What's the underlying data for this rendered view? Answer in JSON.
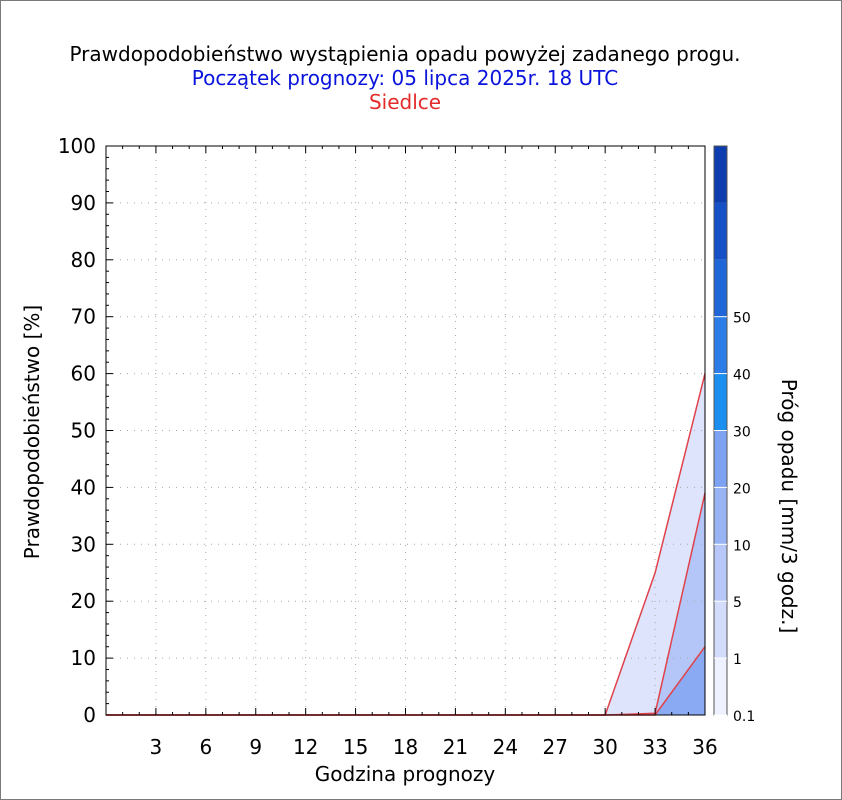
{
  "header": {
    "title": "Prawdopodobieństwo wystąpienia opadu powyżej zadanego progu.",
    "forecast_start": "Początek prognozy: 05 lipca 2025r. 18 UTC",
    "location": "Siedlce"
  },
  "chart_data": {
    "type": "area",
    "xlabel": "Godzina prognozy",
    "ylabel": "Prawdopodobieństwo [%]",
    "colorbar_label": "Próg opadu [mm/3 godz.]",
    "x": [
      0,
      3,
      6,
      9,
      12,
      15,
      18,
      21,
      24,
      27,
      30,
      33,
      36
    ],
    "x_tick_labels": [
      "3",
      "6",
      "9",
      "12",
      "15",
      "18",
      "21",
      "24",
      "27",
      "30",
      "33",
      "36"
    ],
    "xlim": [
      0,
      36
    ],
    "ylim": [
      0,
      100
    ],
    "y_tick_labels": [
      "0",
      "10",
      "20",
      "30",
      "40",
      "50",
      "60",
      "70",
      "80",
      "90",
      "100"
    ],
    "grid": true,
    "series": [
      {
        "name": "0.1",
        "color": "#dde4fb",
        "values": [
          0,
          0,
          0,
          0,
          0,
          0,
          0,
          0,
          0,
          0,
          0,
          25,
          60
        ]
      },
      {
        "name": "1",
        "color": "#b4c6f7",
        "values": [
          0,
          0,
          0,
          0,
          0,
          0,
          0,
          0,
          0,
          0,
          0,
          0.3,
          39
        ]
      },
      {
        "name": "5",
        "color": "#8aaaf3",
        "values": [
          0,
          0,
          0,
          0,
          0,
          0,
          0,
          0,
          0,
          0,
          0,
          0,
          12
        ]
      }
    ],
    "series_line_color": "#e0424b",
    "colorbar": {
      "labels": [
        "0.1",
        "1",
        "5",
        "10",
        "20",
        "30",
        "40",
        "50"
      ],
      "colors": [
        "#eef1fe",
        "#d3ddfb",
        "#b6c7f8",
        "#99b4f4",
        "#7ca2f1",
        "#1a8ff0",
        "#2c7de8",
        "#1f66d9",
        "#1550c6",
        "#0c3cad"
      ]
    }
  }
}
